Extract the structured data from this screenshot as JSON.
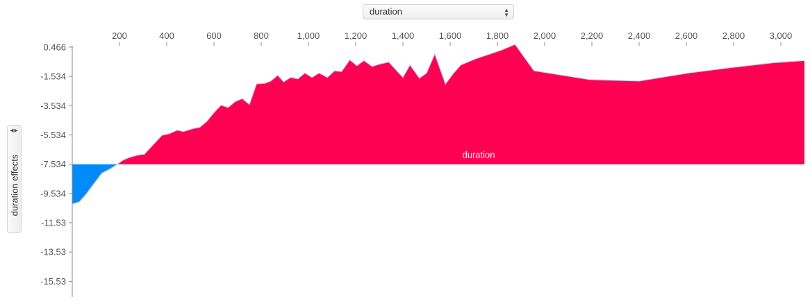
{
  "controls": {
    "x_feature_select": {
      "value": "duration"
    },
    "y_feature_select": {
      "value": "duration effects"
    }
  },
  "colors": {
    "positive": "#ff0052",
    "negative": "#008bfa",
    "edge": "#c9c6ea",
    "axis": "#888888"
  },
  "chart_data": {
    "type": "area",
    "title": "",
    "xlabel": "",
    "ylabel": "duration effects",
    "series_label": "duration",
    "baseline": -7.534,
    "xlim": [
      0,
      3100
    ],
    "ylim": [
      -16.6,
      1.6
    ],
    "x_ticks": [
      200,
      400,
      600,
      800,
      1000,
      1200,
      1400,
      1600,
      1800,
      2000,
      2200,
      2400,
      2600,
      2800,
      3000
    ],
    "x_tick_labels": [
      "200",
      "400",
      "600",
      "800",
      "1,000",
      "1,200",
      "1,400",
      "1,600",
      "1,800",
      "2,000",
      "2,200",
      "2,400",
      "2,600",
      "2,800",
      "3,000"
    ],
    "y_ticks": [
      0.466,
      -1.534,
      -3.534,
      -5.534,
      -7.534,
      -9.534,
      -11.53,
      -13.53,
      -15.53
    ],
    "y_tick_labels": [
      "0.466",
      "-1.534",
      "-3.534",
      "-5.534",
      "-7.534",
      "-9.534",
      "-11.53",
      "-13.53",
      "-15.53"
    ],
    "x": [
      0,
      30,
      60,
      90,
      125,
      160,
      185,
      215,
      245,
      280,
      305,
      380,
      410,
      445,
      470,
      510,
      540,
      570,
      600,
      630,
      660,
      690,
      720,
      750,
      780,
      815,
      840,
      870,
      895,
      925,
      955,
      985,
      1015,
      1045,
      1080,
      1110,
      1140,
      1175,
      1205,
      1235,
      1270,
      1300,
      1340,
      1400,
      1430,
      1470,
      1500,
      1535,
      1580,
      1615,
      1645,
      1675,
      1705,
      1815,
      1875,
      1955,
      2190,
      2400,
      2610,
      2780,
      2970,
      3100
    ],
    "y": [
      -10.25,
      -10.1,
      -9.55,
      -8.9,
      -8.15,
      -7.85,
      -7.6,
      -7.25,
      -7.05,
      -6.9,
      -6.85,
      -5.55,
      -5.45,
      -5.2,
      -5.3,
      -5.1,
      -5.0,
      -4.6,
      -4.0,
      -3.5,
      -3.65,
      -3.25,
      -3.05,
      -3.45,
      -2.05,
      -2.0,
      -1.85,
      -1.45,
      -1.9,
      -1.6,
      -1.7,
      -1.3,
      -1.6,
      -1.3,
      -1.6,
      -1.15,
      -1.2,
      -0.4,
      -0.8,
      -0.45,
      -0.85,
      -0.7,
      -0.55,
      -1.6,
      -0.75,
      -1.65,
      -1.3,
      0.0,
      -2.05,
      -1.3,
      -0.75,
      -0.55,
      -0.35,
      0.25,
      0.65,
      -1.15,
      -1.75,
      -1.85,
      -1.3,
      -0.95,
      -0.6,
      -0.45
    ]
  }
}
